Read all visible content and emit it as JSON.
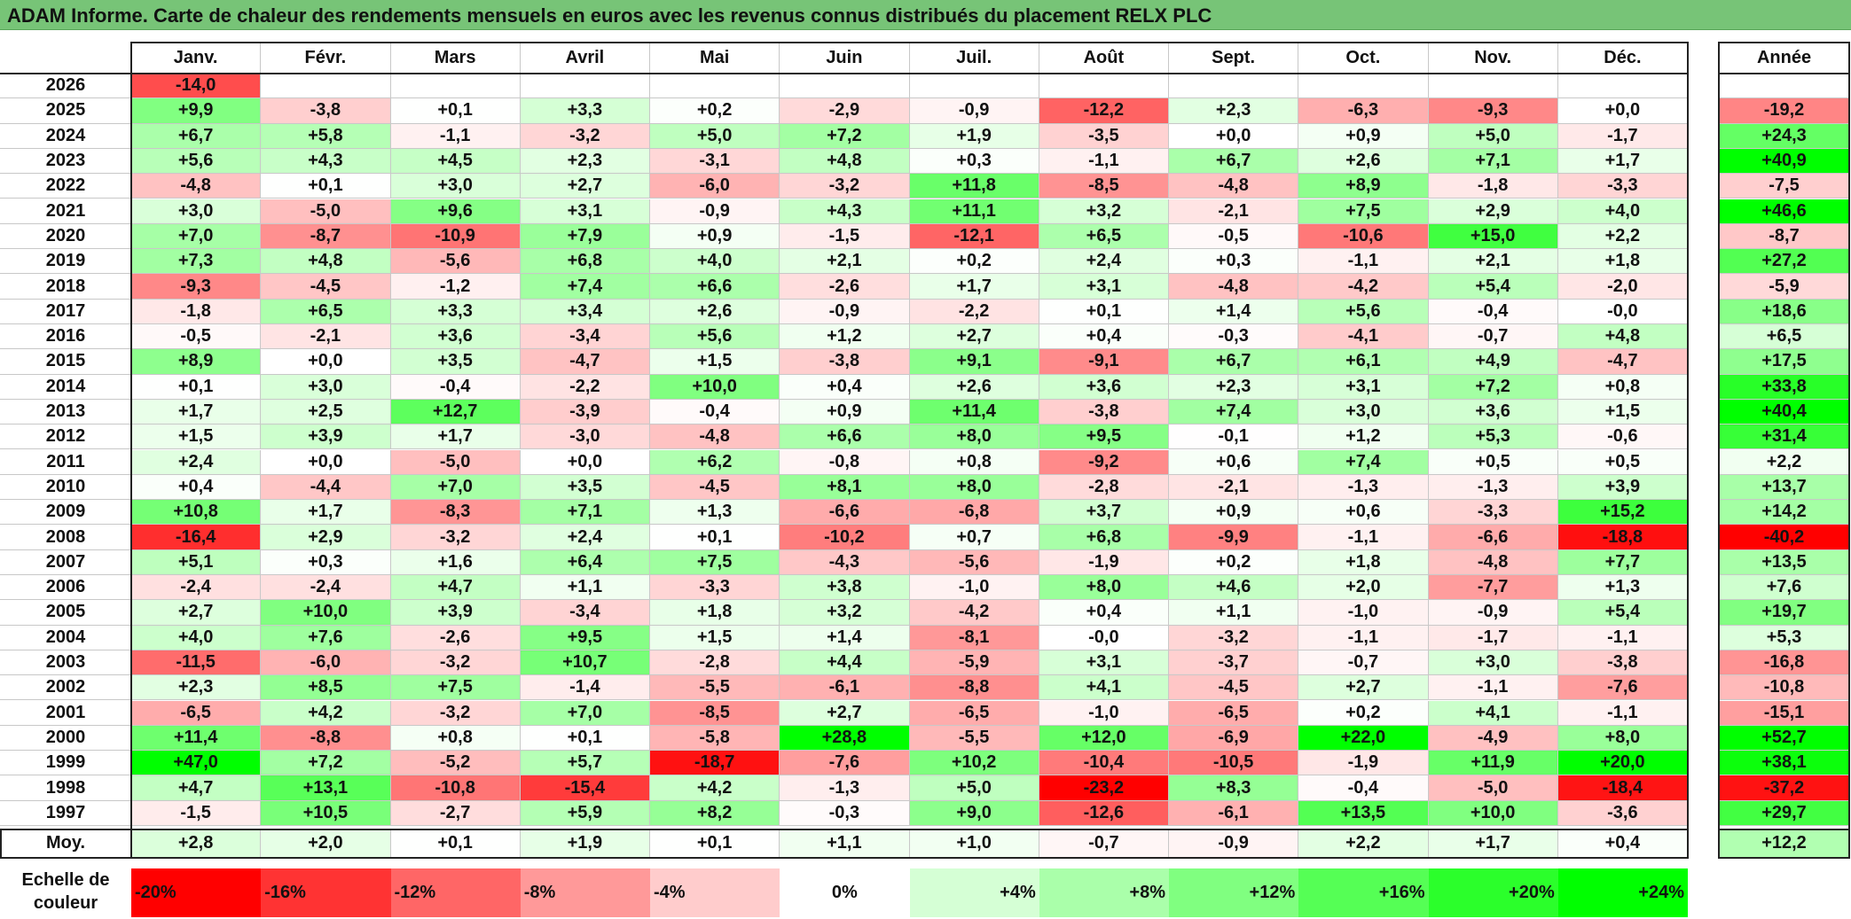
{
  "title": "ADAM Informe. Carte de chaleur des rendements mensuels en euros avec les revenus connus distribués du placement RELX PLC",
  "chart_data": {
    "type": "heatmap",
    "title": "ADAM Informe. Carte de chaleur des rendements mensuels en euros avec les revenus connus distribués du placement RELX PLC",
    "columns": [
      "Janv.",
      "Févr.",
      "Mars",
      "Avril",
      "Mai",
      "Juin",
      "Juil.",
      "Août",
      "Sept.",
      "Oct.",
      "Nov.",
      "Déc."
    ],
    "year_label": "Année",
    "average_label": "Moy.",
    "rows": [
      {
        "year": "2026",
        "months": [
          "-14,0",
          "",
          "",
          "",
          "",
          "",
          "",
          "",
          "",
          "",
          "",
          ""
        ],
        "annual": ""
      },
      {
        "year": "2025",
        "months": [
          "+9,9",
          "-3,8",
          "+0,1",
          "+3,3",
          "+0,2",
          "-2,9",
          "-0,9",
          "-12,2",
          "+2,3",
          "-6,3",
          "-9,3",
          "+0,0"
        ],
        "annual": "-19,2"
      },
      {
        "year": "2024",
        "months": [
          "+6,7",
          "+5,8",
          "-1,1",
          "-3,2",
          "+5,0",
          "+7,2",
          "+1,9",
          "-3,5",
          "+0,0",
          "+0,9",
          "+5,0",
          "-1,7"
        ],
        "annual": "+24,3"
      },
      {
        "year": "2023",
        "months": [
          "+5,6",
          "+4,3",
          "+4,5",
          "+2,3",
          "-3,1",
          "+4,8",
          "+0,3",
          "-1,1",
          "+6,7",
          "+2,6",
          "+7,1",
          "+1,7"
        ],
        "annual": "+40,9"
      },
      {
        "year": "2022",
        "months": [
          "-4,8",
          "+0,1",
          "+3,0",
          "+2,7",
          "-6,0",
          "-3,2",
          "+11,8",
          "-8,5",
          "-4,8",
          "+8,9",
          "-1,8",
          "-3,3"
        ],
        "annual": "-7,5"
      },
      {
        "year": "2021",
        "months": [
          "+3,0",
          "-5,0",
          "+9,6",
          "+3,1",
          "-0,9",
          "+4,3",
          "+11,1",
          "+3,2",
          "-2,1",
          "+7,5",
          "+2,9",
          "+4,0"
        ],
        "annual": "+46,6"
      },
      {
        "year": "2020",
        "months": [
          "+7,0",
          "-8,7",
          "-10,9",
          "+7,9",
          "+0,9",
          "-1,5",
          "-12,1",
          "+6,5",
          "-0,5",
          "-10,6",
          "+15,0",
          "+2,2"
        ],
        "annual": "-8,7"
      },
      {
        "year": "2019",
        "months": [
          "+7,3",
          "+4,8",
          "-5,6",
          "+6,8",
          "+4,0",
          "+2,1",
          "+0,2",
          "+2,4",
          "+0,3",
          "-1,1",
          "+2,1",
          "+1,8"
        ],
        "annual": "+27,2"
      },
      {
        "year": "2018",
        "months": [
          "-9,3",
          "-4,5",
          "-1,2",
          "+7,4",
          "+6,6",
          "-2,6",
          "+1,7",
          "+3,1",
          "-4,8",
          "-4,2",
          "+5,4",
          "-2,0"
        ],
        "annual": "-5,9"
      },
      {
        "year": "2017",
        "months": [
          "-1,8",
          "+6,5",
          "+3,3",
          "+3,4",
          "+2,6",
          "-0,9",
          "-2,2",
          "+0,1",
          "+1,4",
          "+5,6",
          "-0,4",
          "-0,0"
        ],
        "annual": "+18,6"
      },
      {
        "year": "2016",
        "months": [
          "-0,5",
          "-2,1",
          "+3,6",
          "-3,4",
          "+5,6",
          "+1,2",
          "+2,7",
          "+0,4",
          "-0,3",
          "-4,1",
          "-0,7",
          "+4,8"
        ],
        "annual": "+6,5"
      },
      {
        "year": "2015",
        "months": [
          "+8,9",
          "+0,0",
          "+3,5",
          "-4,7",
          "+1,5",
          "-3,8",
          "+9,1",
          "-9,1",
          "+6,7",
          "+6,1",
          "+4,9",
          "-4,7"
        ],
        "annual": "+17,5"
      },
      {
        "year": "2014",
        "months": [
          "+0,1",
          "+3,0",
          "-0,4",
          "-2,2",
          "+10,0",
          "+0,4",
          "+2,6",
          "+3,6",
          "+2,3",
          "+3,1",
          "+7,2",
          "+0,8"
        ],
        "annual": "+33,8"
      },
      {
        "year": "2013",
        "months": [
          "+1,7",
          "+2,5",
          "+12,7",
          "-3,9",
          "-0,4",
          "+0,9",
          "+11,4",
          "-3,8",
          "+7,4",
          "+3,0",
          "+3,6",
          "+1,5"
        ],
        "annual": "+40,4"
      },
      {
        "year": "2012",
        "months": [
          "+1,5",
          "+3,9",
          "+1,7",
          "-3,0",
          "-4,8",
          "+6,6",
          "+8,0",
          "+9,5",
          "-0,1",
          "+1,2",
          "+5,3",
          "-0,6"
        ],
        "annual": "+31,4"
      },
      {
        "year": "2011",
        "months": [
          "+2,4",
          "+0,0",
          "-5,0",
          "+0,0",
          "+6,2",
          "-0,8",
          "+0,8",
          "-9,2",
          "+0,6",
          "+7,4",
          "+0,5",
          "+0,5"
        ],
        "annual": "+2,2"
      },
      {
        "year": "2010",
        "months": [
          "+0,4",
          "-4,4",
          "+7,0",
          "+3,5",
          "-4,5",
          "+8,1",
          "+8,0",
          "-2,8",
          "-2,1",
          "-1,3",
          "-1,3",
          "+3,9"
        ],
        "annual": "+13,7"
      },
      {
        "year": "2009",
        "months": [
          "+10,8",
          "+1,7",
          "-8,3",
          "+7,1",
          "+1,3",
          "-6,6",
          "-6,8",
          "+3,7",
          "+0,9",
          "+0,6",
          "-3,3",
          "+15,2"
        ],
        "annual": "+14,2"
      },
      {
        "year": "2008",
        "months": [
          "-16,4",
          "+2,9",
          "-3,2",
          "+2,4",
          "+0,1",
          "-10,2",
          "+0,7",
          "+6,8",
          "-9,9",
          "-1,1",
          "-6,6",
          "-18,8"
        ],
        "annual": "-40,2"
      },
      {
        "year": "2007",
        "months": [
          "+5,1",
          "+0,3",
          "+1,6",
          "+6,4",
          "+7,5",
          "-4,3",
          "-5,6",
          "-1,9",
          "+0,2",
          "+1,8",
          "-4,8",
          "+7,7"
        ],
        "annual": "+13,5"
      },
      {
        "year": "2006",
        "months": [
          "-2,4",
          "-2,4",
          "+4,7",
          "+1,1",
          "-3,3",
          "+3,8",
          "-1,0",
          "+8,0",
          "+4,6",
          "+2,0",
          "-7,7",
          "+1,3"
        ],
        "annual": "+7,6"
      },
      {
        "year": "2005",
        "months": [
          "+2,7",
          "+10,0",
          "+3,9",
          "-3,4",
          "+1,8",
          "+3,2",
          "-4,2",
          "+0,4",
          "+1,1",
          "-1,0",
          "-0,9",
          "+5,4"
        ],
        "annual": "+19,7"
      },
      {
        "year": "2004",
        "months": [
          "+4,0",
          "+7,6",
          "-2,6",
          "+9,5",
          "+1,5",
          "+1,4",
          "-8,1",
          "-0,0",
          "-3,2",
          "-1,1",
          "-1,7",
          "-1,1"
        ],
        "annual": "+5,3"
      },
      {
        "year": "2003",
        "months": [
          "-11,5",
          "-6,0",
          "-3,2",
          "+10,7",
          "-2,8",
          "+4,4",
          "-5,9",
          "+3,1",
          "-3,7",
          "-0,7",
          "+3,0",
          "-3,8"
        ],
        "annual": "-16,8"
      },
      {
        "year": "2002",
        "months": [
          "+2,3",
          "+8,5",
          "+7,5",
          "-1,4",
          "-5,5",
          "-6,1",
          "-8,8",
          "+4,1",
          "-4,5",
          "+2,7",
          "-1,1",
          "-7,6"
        ],
        "annual": "-10,8"
      },
      {
        "year": "2001",
        "months": [
          "-6,5",
          "+4,2",
          "-3,2",
          "+7,0",
          "-8,5",
          "+2,7",
          "-6,5",
          "-1,0",
          "-6,5",
          "+0,2",
          "+4,1",
          "-1,1"
        ],
        "annual": "-15,1"
      },
      {
        "year": "2000",
        "months": [
          "+11,4",
          "-8,8",
          "+0,8",
          "+0,1",
          "-5,8",
          "+28,8",
          "-5,5",
          "+12,0",
          "-6,9",
          "+22,0",
          "-4,9",
          "+8,0"
        ],
        "annual": "+52,7"
      },
      {
        "year": "1999",
        "months": [
          "+47,0",
          "+7,2",
          "-5,2",
          "+5,7",
          "-18,7",
          "-7,6",
          "+10,2",
          "-10,4",
          "-10,5",
          "-1,9",
          "+11,9",
          "+20,0"
        ],
        "annual": "+38,1"
      },
      {
        "year": "1998",
        "months": [
          "+4,7",
          "+13,1",
          "-10,8",
          "-15,4",
          "+4,2",
          "-1,3",
          "+5,0",
          "-23,2",
          "+8,3",
          "-0,4",
          "-5,0",
          "-18,4"
        ],
        "annual": "-37,2"
      },
      {
        "year": "1997",
        "months": [
          "-1,5",
          "+10,5",
          "-2,7",
          "+5,9",
          "+8,2",
          "-0,3",
          "+9,0",
          "-12,6",
          "-6,1",
          "+13,5",
          "+10,0",
          "-3,6"
        ],
        "annual": "+29,7"
      }
    ],
    "average": {
      "months": [
        "+2,8",
        "+2,0",
        "+0,1",
        "+1,9",
        "+0,1",
        "+1,1",
        "+1,0",
        "-0,7",
        "-0,9",
        "+2,2",
        "+1,7",
        "+0,4"
      ],
      "annual": "+12,2"
    },
    "scale": {
      "label_line1": "Echelle de",
      "label_line2": "couleur",
      "steps": [
        {
          "label": "-20%",
          "value": -20,
          "color": "#ff0000"
        },
        {
          "label": "-16%",
          "value": -16,
          "color": "#ff3333"
        },
        {
          "label": "-12%",
          "value": -12,
          "color": "#ff6666"
        },
        {
          "label": "-8%",
          "value": -8,
          "color": "#ff9999"
        },
        {
          "label": "-4%",
          "value": -4,
          "color": "#ffcccc"
        },
        {
          "label": "0%",
          "value": 0,
          "color": "#ffffff"
        },
        {
          "label": "+4%",
          "value": 4,
          "color": "#d5ffd5"
        },
        {
          "label": "+8%",
          "value": 8,
          "color": "#aaffaa"
        },
        {
          "label": "+12%",
          "value": 12,
          "color": "#80ff80"
        },
        {
          "label": "+16%",
          "value": 16,
          "color": "#55ff55"
        },
        {
          "label": "+20%",
          "value": 20,
          "color": "#2bff2b"
        },
        {
          "label": "+24%",
          "value": 24,
          "color": "#00ff00"
        }
      ]
    }
  }
}
